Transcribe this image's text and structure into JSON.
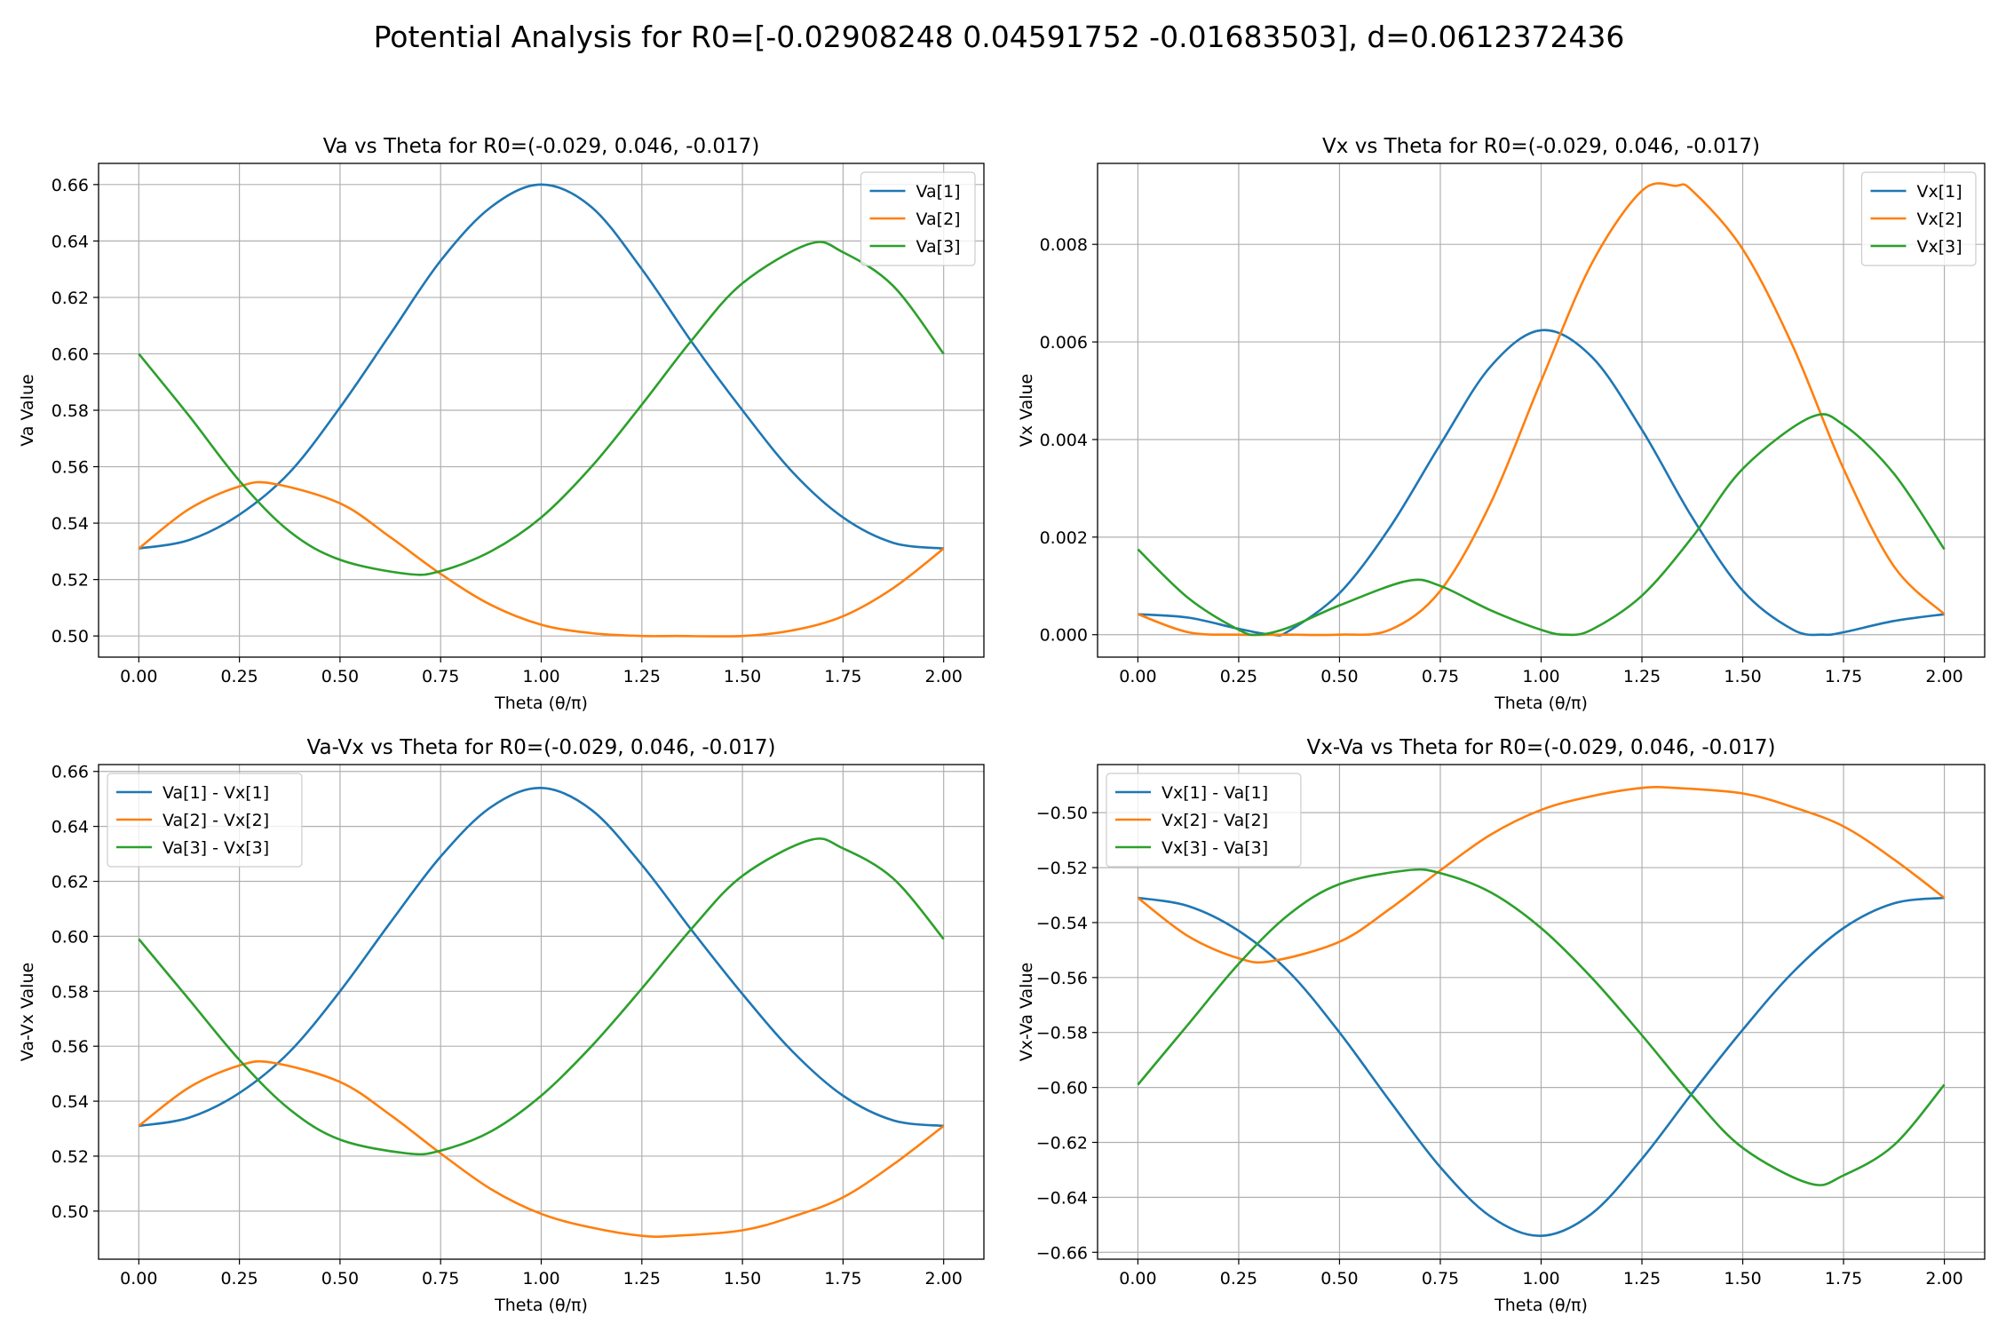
{
  "figure": {
    "suptitle": "Potential Analysis for R0=[-0.02908248  0.04591752 -0.01683503], d=0.0612372436"
  },
  "colors": {
    "blue": "#1f77b4",
    "orange": "#ff7f0e",
    "green": "#2ca02c",
    "grid": "#b0b0b0"
  },
  "chart_data": [
    {
      "type": "line",
      "title": "Va vs Theta for R0=(-0.029, 0.046, -0.017)",
      "xlabel": "Theta (θ/π)",
      "ylabel": "Va Value",
      "xlim": [
        -0.1,
        2.1
      ],
      "ylim": [
        0.4925,
        0.6675
      ],
      "xticks": [
        0.0,
        0.25,
        0.5,
        0.75,
        1.0,
        1.25,
        1.5,
        1.75,
        2.0
      ],
      "xtick_labels": [
        "0.00",
        "0.25",
        "0.50",
        "0.75",
        "1.00",
        "1.25",
        "1.50",
        "1.75",
        "2.00"
      ],
      "yticks": [
        0.5,
        0.52,
        0.54,
        0.56,
        0.58,
        0.6,
        0.62,
        0.64,
        0.66
      ],
      "ytick_labels": [
        "0.50",
        "0.52",
        "0.54",
        "0.56",
        "0.58",
        "0.60",
        "0.62",
        "0.64",
        "0.66"
      ],
      "grid": true,
      "legend": "upper right",
      "series": [
        {
          "name": "Va[1]",
          "color": "#1f77b4",
          "x": [
            0,
            0.125,
            0.25,
            0.375,
            0.5,
            0.625,
            0.75,
            0.875,
            1.0,
            1.125,
            1.25,
            1.375,
            1.5,
            1.625,
            1.75,
            1.875,
            2.0
          ],
          "y": [
            0.531,
            0.534,
            0.543,
            0.558,
            0.581,
            0.607,
            0.633,
            0.652,
            0.66,
            0.652,
            0.63,
            0.604,
            0.58,
            0.558,
            0.542,
            0.533,
            0.531
          ]
        },
        {
          "name": "Va[2]",
          "color": "#ff7f0e",
          "x": [
            0,
            0.125,
            0.25,
            0.333,
            0.5,
            0.625,
            0.75,
            0.875,
            1.0,
            1.125,
            1.25,
            1.333,
            1.5,
            1.625,
            1.75,
            1.875,
            2.0
          ],
          "y": [
            0.531,
            0.545,
            0.553,
            0.554,
            0.547,
            0.535,
            0.522,
            0.511,
            0.504,
            0.501,
            0.5,
            0.5,
            0.5,
            0.502,
            0.507,
            0.517,
            0.531
          ]
        },
        {
          "name": "Va[3]",
          "color": "#2ca02c",
          "x": [
            0,
            0.125,
            0.25,
            0.375,
            0.5,
            0.667,
            0.75,
            0.875,
            1.0,
            1.125,
            1.25,
            1.375,
            1.5,
            1.667,
            1.75,
            1.875,
            2.0
          ],
          "y": [
            0.6,
            0.578,
            0.555,
            0.537,
            0.527,
            0.522,
            0.523,
            0.53,
            0.542,
            0.56,
            0.582,
            0.605,
            0.625,
            0.639,
            0.636,
            0.624,
            0.6
          ]
        }
      ]
    },
    {
      "type": "line",
      "title": "Vx vs Theta for R0=(-0.029, 0.046, -0.017)",
      "xlabel": "Theta (θ/π)",
      "ylabel": "Vx Value",
      "xlim": [
        -0.1,
        2.1
      ],
      "ylim": [
        -0.00046,
        0.00966
      ],
      "xticks": [
        0.0,
        0.25,
        0.5,
        0.75,
        1.0,
        1.25,
        1.5,
        1.75,
        2.0
      ],
      "xtick_labels": [
        "0.00",
        "0.25",
        "0.50",
        "0.75",
        "1.00",
        "1.25",
        "1.50",
        "1.75",
        "2.00"
      ],
      "yticks": [
        0.0,
        0.002,
        0.004,
        0.006,
        0.008
      ],
      "ytick_labels": [
        "0.000",
        "0.002",
        "0.004",
        "0.006",
        "0.008"
      ],
      "grid": true,
      "legend": "upper right",
      "series": [
        {
          "name": "Vx[1]",
          "color": "#1f77b4",
          "x": [
            0,
            0.125,
            0.25,
            0.333,
            0.375,
            0.5,
            0.625,
            0.75,
            0.875,
            1.0,
            1.125,
            1.25,
            1.375,
            1.5,
            1.625,
            1.7,
            1.75,
            1.875,
            2.0
          ],
          "y": [
            0.00042,
            0.00035,
            0.00012,
            0.0,
            8e-05,
            0.00085,
            0.0022,
            0.0039,
            0.0055,
            0.00624,
            0.0057,
            0.0042,
            0.0024,
            0.0009,
            0.0001,
            0.0,
            5e-05,
            0.00028,
            0.00042
          ]
        },
        {
          "name": "Vx[2]",
          "color": "#ff7f0e",
          "x": [
            0,
            0.125,
            0.25,
            0.375,
            0.5,
            0.625,
            0.75,
            0.875,
            1.0,
            1.125,
            1.25,
            1.333,
            1.375,
            1.5,
            1.625,
            1.75,
            1.875,
            2.0
          ],
          "y": [
            0.00042,
            5e-05,
            0.0,
            0.0,
            0.0,
            0.0001,
            0.0009,
            0.0027,
            0.0052,
            0.0076,
            0.0091,
            0.0092,
            0.0091,
            0.0079,
            0.0059,
            0.0034,
            0.0014,
            0.00042
          ]
        },
        {
          "name": "Vx[3]",
          "color": "#2ca02c",
          "x": [
            0,
            0.125,
            0.25,
            0.3,
            0.375,
            0.5,
            0.667,
            0.75,
            0.875,
            1.0,
            1.06,
            1.125,
            1.25,
            1.375,
            1.5,
            1.667,
            1.75,
            1.875,
            2.0
          ],
          "y": [
            0.00175,
            0.00075,
            0.0001,
            0.0,
            0.00015,
            0.0006,
            0.0011,
            0.001,
            0.0005,
            0.0001,
            0.0,
            0.0001,
            0.0008,
            0.002,
            0.0034,
            0.00445,
            0.0043,
            0.0033,
            0.00175
          ]
        }
      ]
    },
    {
      "type": "line",
      "title": "Va-Vx vs Theta for R0=(-0.029, 0.046, -0.017)",
      "xlabel": "Theta (θ/π)",
      "ylabel": "Va-Vx Value",
      "xlim": [
        -0.1,
        2.1
      ],
      "ylim": [
        0.4825,
        0.6625
      ],
      "xticks": [
        0.0,
        0.25,
        0.5,
        0.75,
        1.0,
        1.25,
        1.5,
        1.75,
        2.0
      ],
      "xtick_labels": [
        "0.00",
        "0.25",
        "0.50",
        "0.75",
        "1.00",
        "1.25",
        "1.50",
        "1.75",
        "2.00"
      ],
      "yticks": [
        0.5,
        0.52,
        0.54,
        0.56,
        0.58,
        0.6,
        0.62,
        0.64,
        0.66
      ],
      "ytick_labels": [
        "0.50",
        "0.52",
        "0.54",
        "0.56",
        "0.58",
        "0.60",
        "0.62",
        "0.64",
        "0.66"
      ],
      "grid": true,
      "legend": "upper left",
      "series": [
        {
          "name": "Va[1] - Vx[1]",
          "color": "#1f77b4",
          "x": [
            0,
            0.125,
            0.25,
            0.375,
            0.5,
            0.625,
            0.75,
            0.875,
            1.0,
            1.125,
            1.25,
            1.375,
            1.5,
            1.625,
            1.75,
            1.875,
            2.0
          ],
          "y": [
            0.531,
            0.534,
            0.543,
            0.558,
            0.58,
            0.605,
            0.629,
            0.647,
            0.654,
            0.646,
            0.626,
            0.602,
            0.579,
            0.558,
            0.542,
            0.533,
            0.531
          ]
        },
        {
          "name": "Va[2] - Vx[2]",
          "color": "#ff7f0e",
          "x": [
            0,
            0.125,
            0.25,
            0.333,
            0.5,
            0.625,
            0.75,
            0.875,
            1.0,
            1.125,
            1.25,
            1.333,
            1.5,
            1.625,
            1.75,
            1.875,
            2.0
          ],
          "y": [
            0.531,
            0.545,
            0.553,
            0.554,
            0.547,
            0.535,
            0.521,
            0.508,
            0.499,
            0.494,
            0.491,
            0.491,
            0.493,
            0.498,
            0.505,
            0.517,
            0.531
          ]
        },
        {
          "name": "Va[3] - Vx[3]",
          "color": "#2ca02c",
          "x": [
            0,
            0.125,
            0.25,
            0.375,
            0.5,
            0.667,
            0.75,
            0.875,
            1.0,
            1.125,
            1.25,
            1.375,
            1.5,
            1.667,
            1.75,
            1.875,
            2.0
          ],
          "y": [
            0.599,
            0.577,
            0.555,
            0.537,
            0.526,
            0.521,
            0.522,
            0.529,
            0.542,
            0.56,
            0.581,
            0.603,
            0.622,
            0.635,
            0.632,
            0.621,
            0.599
          ]
        }
      ]
    },
    {
      "type": "line",
      "title": "Vx-Va vs Theta for R0=(-0.029, 0.046, -0.017)",
      "xlabel": "Theta (θ/π)",
      "ylabel": "Vx-Va Value",
      "xlim": [
        -0.1,
        2.1
      ],
      "ylim": [
        -0.6625,
        -0.4825
      ],
      "xticks": [
        0.0,
        0.25,
        0.5,
        0.75,
        1.0,
        1.25,
        1.5,
        1.75,
        2.0
      ],
      "xtick_labels": [
        "0.00",
        "0.25",
        "0.50",
        "0.75",
        "1.00",
        "1.25",
        "1.50",
        "1.75",
        "2.00"
      ],
      "yticks": [
        -0.66,
        -0.64,
        -0.62,
        -0.6,
        -0.58,
        -0.56,
        -0.54,
        -0.52,
        -0.5
      ],
      "ytick_labels": [
        "−0.66",
        "−0.64",
        "−0.62",
        "−0.60",
        "−0.58",
        "−0.56",
        "−0.54",
        "−0.52",
        "−0.50"
      ],
      "grid": true,
      "legend": "upper left",
      "series": [
        {
          "name": "Vx[1] - Va[1]",
          "color": "#1f77b4",
          "x": [
            0,
            0.125,
            0.25,
            0.375,
            0.5,
            0.625,
            0.75,
            0.875,
            1.0,
            1.125,
            1.25,
            1.375,
            1.5,
            1.625,
            1.75,
            1.875,
            2.0
          ],
          "y": [
            -0.531,
            -0.534,
            -0.543,
            -0.558,
            -0.58,
            -0.605,
            -0.629,
            -0.647,
            -0.654,
            -0.646,
            -0.626,
            -0.602,
            -0.579,
            -0.558,
            -0.542,
            -0.533,
            -0.531
          ]
        },
        {
          "name": "Vx[2] - Va[2]",
          "color": "#ff7f0e",
          "x": [
            0,
            0.125,
            0.25,
            0.333,
            0.5,
            0.625,
            0.75,
            0.875,
            1.0,
            1.125,
            1.25,
            1.333,
            1.5,
            1.625,
            1.75,
            1.875,
            2.0
          ],
          "y": [
            -0.531,
            -0.545,
            -0.553,
            -0.554,
            -0.547,
            -0.535,
            -0.521,
            -0.508,
            -0.499,
            -0.494,
            -0.491,
            -0.491,
            -0.493,
            -0.498,
            -0.505,
            -0.517,
            -0.531
          ]
        },
        {
          "name": "Vx[3] - Va[3]",
          "color": "#2ca02c",
          "x": [
            0,
            0.125,
            0.25,
            0.375,
            0.5,
            0.667,
            0.75,
            0.875,
            1.0,
            1.125,
            1.25,
            1.375,
            1.5,
            1.667,
            1.75,
            1.875,
            2.0
          ],
          "y": [
            -0.599,
            -0.577,
            -0.555,
            -0.537,
            -0.526,
            -0.521,
            -0.522,
            -0.529,
            -0.542,
            -0.56,
            -0.581,
            -0.603,
            -0.622,
            -0.635,
            -0.632,
            -0.621,
            -0.599
          ]
        }
      ]
    }
  ]
}
